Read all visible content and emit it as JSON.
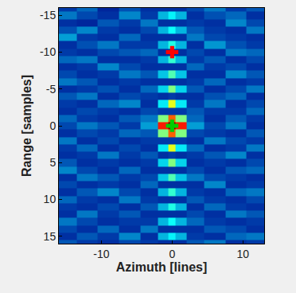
{
  "chart_data": {
    "type": "heatmap",
    "x_label": "Azimuth [lines]",
    "y_label": "Range [samples]",
    "color": "Jet",
    "zlim": [
      0,
      1
    ],
    "xlim": [
      -16,
      13
    ],
    "ylim": [
      16,
      -16
    ],
    "xticks": [
      -10,
      0,
      10
    ],
    "yticks": [
      -15,
      -10,
      -5,
      0,
      5,
      10,
      15
    ],
    "x": [
      -15,
      -12,
      -9,
      -6,
      -3,
      -1,
      0,
      1,
      3,
      6,
      9,
      12
    ],
    "y": [
      -16,
      -15,
      -14,
      -13,
      -12,
      -11,
      -10,
      -9,
      -8,
      -7,
      -6,
      -5,
      -4,
      -3,
      -2,
      -1,
      0,
      1,
      2,
      3,
      4,
      5,
      6,
      7,
      8,
      9,
      10,
      11,
      12,
      13,
      14,
      15,
      16
    ],
    "cells": [
      [
        0.12,
        0.18,
        0.08,
        0.15,
        0.1,
        0.1,
        0.1,
        0.1,
        0.14,
        0.2,
        0.12,
        0.16
      ],
      [
        0.2,
        0.14,
        0.1,
        0.22,
        0.12,
        0.28,
        0.36,
        0.28,
        0.1,
        0.15,
        0.18,
        0.1
      ],
      [
        0.1,
        0.08,
        0.16,
        0.12,
        0.2,
        0.1,
        0.1,
        0.1,
        0.12,
        0.1,
        0.22,
        0.14
      ],
      [
        0.15,
        0.22,
        0.12,
        0.1,
        0.14,
        0.28,
        0.38,
        0.28,
        0.16,
        0.12,
        0.1,
        0.2
      ],
      [
        0.25,
        0.12,
        0.1,
        0.18,
        0.1,
        0.1,
        0.1,
        0.1,
        0.2,
        0.14,
        0.12,
        0.1
      ],
      [
        0.1,
        0.15,
        0.2,
        0.12,
        0.12,
        0.28,
        0.4,
        0.28,
        0.1,
        0.24,
        0.15,
        0.12
      ],
      [
        0.12,
        0.1,
        0.14,
        0.16,
        0.18,
        0.1,
        0.1,
        0.1,
        0.14,
        0.1,
        0.2,
        0.18
      ],
      [
        0.18,
        0.2,
        0.1,
        0.1,
        0.12,
        0.28,
        0.42,
        0.28,
        0.12,
        0.16,
        0.1,
        0.14
      ],
      [
        0.1,
        0.12,
        0.22,
        0.14,
        0.1,
        0.1,
        0.1,
        0.1,
        0.18,
        0.12,
        0.14,
        0.1
      ],
      [
        0.14,
        0.1,
        0.12,
        0.2,
        0.16,
        0.3,
        0.45,
        0.3,
        0.1,
        0.1,
        0.22,
        0.16
      ],
      [
        0.2,
        0.16,
        0.1,
        0.12,
        0.1,
        0.1,
        0.1,
        0.1,
        0.12,
        0.18,
        0.1,
        0.12
      ],
      [
        0.1,
        0.12,
        0.15,
        0.1,
        0.18,
        0.32,
        0.5,
        0.32,
        0.16,
        0.1,
        0.14,
        0.2
      ],
      [
        0.16,
        0.2,
        0.1,
        0.14,
        0.12,
        0.1,
        0.12,
        0.1,
        0.1,
        0.15,
        0.18,
        0.1
      ],
      [
        0.12,
        0.1,
        0.18,
        0.22,
        0.1,
        0.35,
        0.6,
        0.35,
        0.12,
        0.2,
        0.1,
        0.14
      ],
      [
        0.1,
        0.14,
        0.12,
        0.1,
        0.14,
        0.12,
        0.12,
        0.12,
        0.16,
        0.12,
        0.12,
        0.18
      ],
      [
        0.18,
        0.12,
        0.1,
        0.16,
        0.2,
        0.5,
        0.78,
        0.5,
        0.18,
        0.1,
        0.16,
        0.12
      ],
      [
        0.14,
        0.2,
        0.16,
        0.12,
        0.25,
        0.85,
        1.0,
        0.85,
        0.25,
        0.14,
        0.2,
        0.1
      ],
      [
        0.1,
        0.14,
        0.12,
        0.18,
        0.16,
        0.5,
        0.78,
        0.5,
        0.14,
        0.12,
        0.1,
        0.16
      ],
      [
        0.2,
        0.1,
        0.14,
        0.1,
        0.12,
        0.12,
        0.12,
        0.12,
        0.1,
        0.2,
        0.14,
        0.12
      ],
      [
        0.12,
        0.18,
        0.1,
        0.14,
        0.1,
        0.35,
        0.6,
        0.35,
        0.18,
        0.1,
        0.12,
        0.2
      ],
      [
        0.1,
        0.12,
        0.2,
        0.12,
        0.16,
        0.1,
        0.12,
        0.1,
        0.12,
        0.16,
        0.22,
        0.1
      ],
      [
        0.16,
        0.1,
        0.12,
        0.1,
        0.12,
        0.32,
        0.5,
        0.32,
        0.1,
        0.12,
        0.1,
        0.14
      ],
      [
        0.22,
        0.14,
        0.1,
        0.18,
        0.1,
        0.1,
        0.1,
        0.1,
        0.14,
        0.1,
        0.16,
        0.18
      ],
      [
        0.1,
        0.2,
        0.16,
        0.12,
        0.14,
        0.3,
        0.45,
        0.3,
        0.2,
        0.14,
        0.12,
        0.1
      ],
      [
        0.14,
        0.1,
        0.12,
        0.1,
        0.18,
        0.1,
        0.1,
        0.1,
        0.1,
        0.22,
        0.1,
        0.12
      ],
      [
        0.1,
        0.16,
        0.22,
        0.14,
        0.1,
        0.28,
        0.42,
        0.28,
        0.12,
        0.1,
        0.18,
        0.2
      ],
      [
        0.18,
        0.12,
        0.1,
        0.2,
        0.12,
        0.1,
        0.1,
        0.1,
        0.16,
        0.12,
        0.1,
        0.14
      ],
      [
        0.12,
        0.1,
        0.14,
        0.1,
        0.16,
        0.28,
        0.4,
        0.28,
        0.1,
        0.18,
        0.12,
        0.1
      ],
      [
        0.1,
        0.2,
        0.12,
        0.16,
        0.1,
        0.1,
        0.1,
        0.1,
        0.14,
        0.1,
        0.2,
        0.16
      ],
      [
        0.2,
        0.14,
        0.1,
        0.12,
        0.12,
        0.28,
        0.38,
        0.28,
        0.18,
        0.12,
        0.1,
        0.12
      ],
      [
        0.14,
        0.1,
        0.18,
        0.1,
        0.2,
        0.1,
        0.1,
        0.1,
        0.1,
        0.16,
        0.14,
        0.1
      ],
      [
        0.1,
        0.16,
        0.12,
        0.22,
        0.1,
        0.28,
        0.36,
        0.28,
        0.12,
        0.1,
        0.18,
        0.2
      ],
      [
        0.16,
        0.12,
        0.1,
        0.14,
        0.12,
        0.1,
        0.1,
        0.1,
        0.16,
        0.2,
        0.1,
        0.12
      ]
    ],
    "series": [
      {
        "type": "scatter",
        "x": [
          0
        ],
        "values": [
          -10
        ],
        "color": "#ff0000",
        "marker": "cross"
      },
      {
        "type": "scatter",
        "x": [
          0
        ],
        "values": [
          0
        ],
        "color": "#00cc00",
        "marker": "cross"
      }
    ],
    "grid": false
  }
}
